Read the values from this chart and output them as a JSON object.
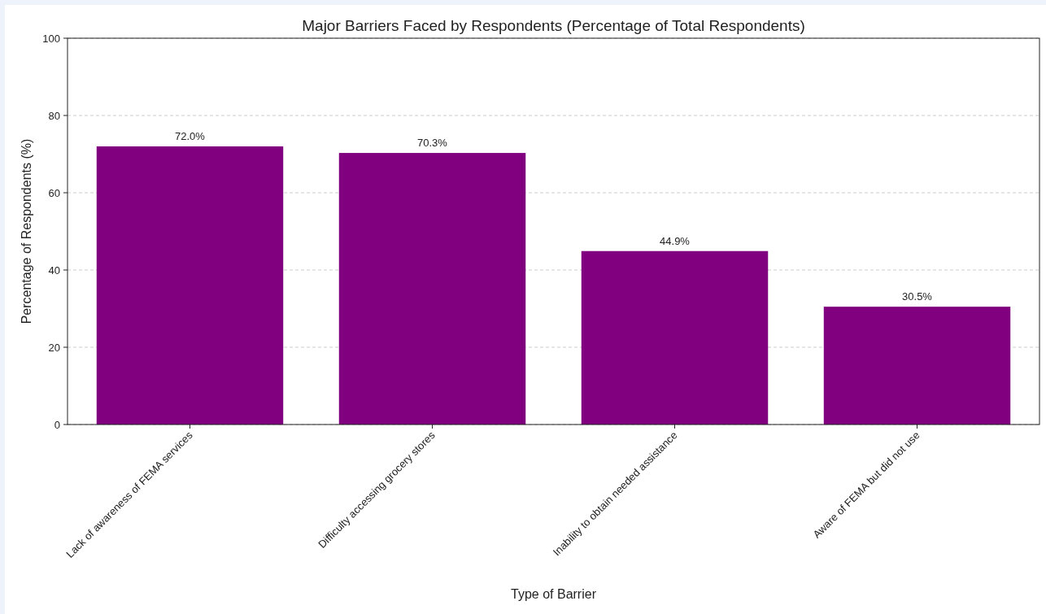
{
  "chart_data": {
    "type": "bar",
    "title": "Major Barriers Faced by Respondents (Percentage of Total Respondents)",
    "xlabel": "Type of Barrier",
    "ylabel": "Percentage of Respondents (%)",
    "categories": [
      "Lack of awareness of FEMA services",
      "Difficulty accessing grocery stores",
      "Inability to obtain needed assistance",
      "Aware of FEMA but did not use"
    ],
    "values": [
      72.0,
      70.3,
      44.9,
      30.5
    ],
    "color": "#800080",
    "value_labels": [
      "72.0%",
      "70.3%",
      "44.9%",
      "30.5%"
    ],
    "ylim": [
      0,
      100
    ],
    "yticks": [
      0,
      20,
      40,
      60,
      80,
      100
    ],
    "grid": "y"
  }
}
